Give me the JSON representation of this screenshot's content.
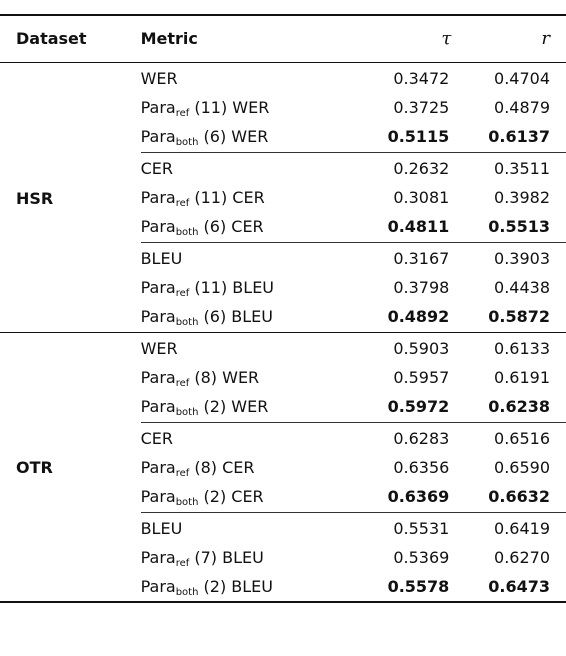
{
  "headers": {
    "dataset": "Dataset",
    "metric": "Metric",
    "tau": "τ",
    "r": "r"
  },
  "datasets": [
    {
      "name": "HSR",
      "groups": [
        {
          "rows": [
            {
              "base": "WER",
              "sub": "",
              "suffix": "",
              "tau": "0.3472",
              "r": "0.4704",
              "bold": false
            },
            {
              "base": "Para",
              "sub": "ref",
              "suffix": " (11) WER",
              "tau": "0.3725",
              "r": "0.4879",
              "bold": false
            },
            {
              "base": "Para",
              "sub": "both",
              "suffix": " (6) WER",
              "tau": "0.5115",
              "r": "0.6137",
              "bold": true
            }
          ]
        },
        {
          "rows": [
            {
              "base": "CER",
              "sub": "",
              "suffix": "",
              "tau": "0.2632",
              "r": "0.3511",
              "bold": false
            },
            {
              "base": "Para",
              "sub": "ref",
              "suffix": " (11) CER",
              "tau": "0.3081",
              "r": "0.3982",
              "bold": false
            },
            {
              "base": "Para",
              "sub": "both",
              "suffix": " (6) CER",
              "tau": "0.4811",
              "r": "0.5513",
              "bold": true
            }
          ]
        },
        {
          "rows": [
            {
              "base": "BLEU",
              "sub": "",
              "suffix": "",
              "tau": "0.3167",
              "r": "0.3903",
              "bold": false
            },
            {
              "base": "Para",
              "sub": "ref",
              "suffix": " (11) BLEU",
              "tau": "0.3798",
              "r": "0.4438",
              "bold": false
            },
            {
              "base": "Para",
              "sub": "both",
              "suffix": " (6) BLEU",
              "tau": "0.4892",
              "r": "0.5872",
              "bold": true
            }
          ]
        }
      ]
    },
    {
      "name": "OTR",
      "groups": [
        {
          "rows": [
            {
              "base": "WER",
              "sub": "",
              "suffix": "",
              "tau": "0.5903",
              "r": "0.6133",
              "bold": false
            },
            {
              "base": "Para",
              "sub": "ref",
              "suffix": " (8) WER",
              "tau": "0.5957",
              "r": "0.6191",
              "bold": false
            },
            {
              "base": "Para",
              "sub": "both",
              "suffix": " (2) WER",
              "tau": "0.5972",
              "r": "0.6238",
              "bold": true
            }
          ]
        },
        {
          "rows": [
            {
              "base": "CER",
              "sub": "",
              "suffix": "",
              "tau": "0.6283",
              "r": "0.6516",
              "bold": false
            },
            {
              "base": "Para",
              "sub": "ref",
              "suffix": " (8) CER",
              "tau": "0.6356",
              "r": "0.6590",
              "bold": false
            },
            {
              "base": "Para",
              "sub": "both",
              "suffix": " (2) CER",
              "tau": "0.6369",
              "r": "0.6632",
              "bold": true
            }
          ]
        },
        {
          "rows": [
            {
              "base": "BLEU",
              "sub": "",
              "suffix": "",
              "tau": "0.5531",
              "r": "0.6419",
              "bold": false
            },
            {
              "base": "Para",
              "sub": "ref",
              "suffix": " (7) BLEU",
              "tau": "0.5369",
              "r": "0.6270",
              "bold": false
            },
            {
              "base": "Para",
              "sub": "both",
              "suffix": " (2) BLEU",
              "tau": "0.5578",
              "r": "0.6473",
              "bold": true
            }
          ]
        }
      ]
    }
  ]
}
